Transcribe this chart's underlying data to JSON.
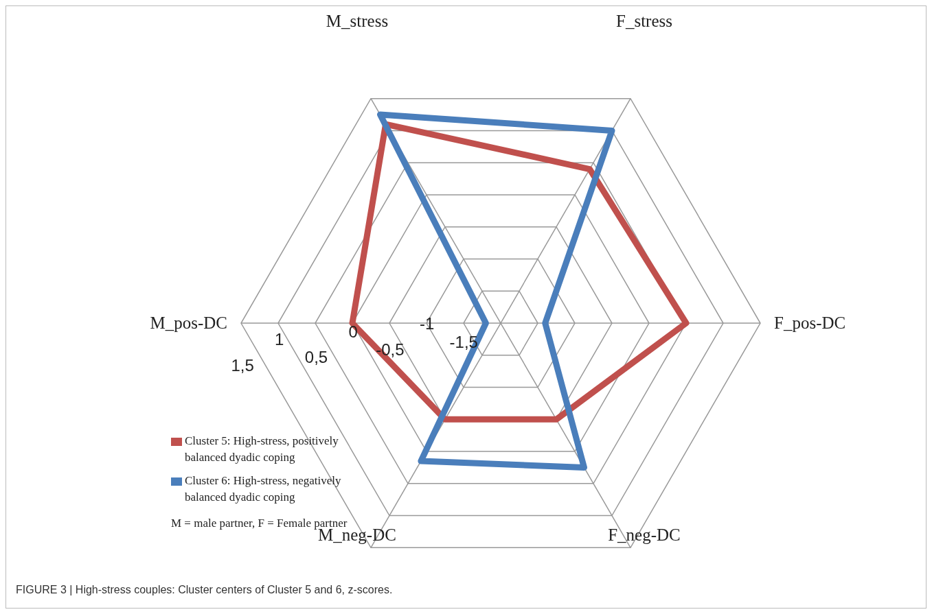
{
  "chart_data": {
    "type": "radar",
    "categories": [
      "M_stress",
      "F_stress",
      "F_pos-DC",
      "F_neg-DC",
      "M_neg-DC",
      "M_pos-DC"
    ],
    "series": [
      {
        "name": "Cluster 5: High-stress, positively balanced dyadic coping",
        "color": "#c0504d",
        "values": [
          1.1,
          0.4,
          0.5,
          -0.5,
          -0.5,
          0.0
        ]
      },
      {
        "name": "Cluster 6: High-stress, negatively balanced dyadic coping",
        "color": "#4a7ebb",
        "values": [
          1.25,
          1.0,
          -1.4,
          0.25,
          0.15,
          -1.8
        ]
      }
    ],
    "ylim": [
      -2,
      1.5
    ],
    "yticks": [
      {
        "value": -1.5,
        "label": "-1,5"
      },
      {
        "value": -1,
        "label": "-1"
      },
      {
        "value": -0.5,
        "label": "-0,5"
      },
      {
        "value": 0,
        "label": "0"
      },
      {
        "value": 0.5,
        "label": "0,5"
      },
      {
        "value": 1,
        "label": "1"
      },
      {
        "value": 1.5,
        "label": "1,5"
      }
    ],
    "grid": true,
    "legend": "bottom left",
    "marker": "none",
    "annotations": [
      "M = male partner, F = Female partner",
      "FIGURE 3 | High-stress couples: Cluster centers of Cluster 5 and 6, z-scores."
    ]
  }
}
